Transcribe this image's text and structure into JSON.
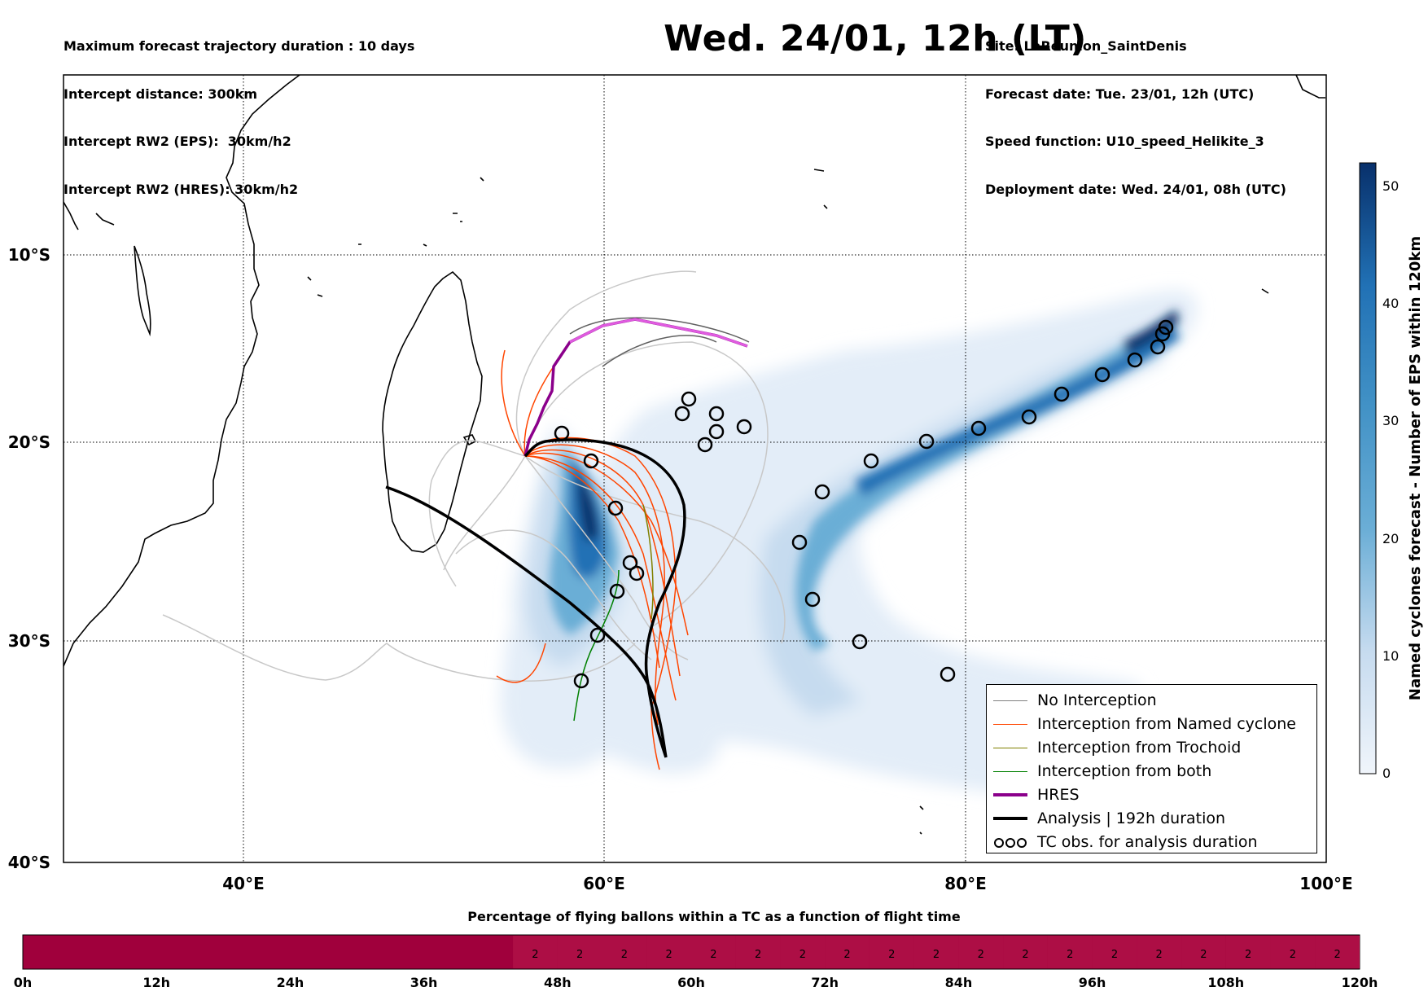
{
  "header_left": [
    "Maximum forecast trajectory duration : 10 days",
    "Intercept distance: 300km",
    "Intercept RW2 (EPS):  30km/h2",
    "Intercept RW2 (HRES): 30km/h2"
  ],
  "header_right": [
    "Site: LaReunion_SaintDenis",
    "Forecast date: Tue. 23/01, 12h (UTC)",
    "Speed function: U10_speed_Helikite_3",
    "Deployment date: Wed. 24/01, 08h (UTC)"
  ],
  "title": "Wed. 24/01, 12h (LT)",
  "map": {
    "lon_labels": [
      "40°E",
      "60°E",
      "80°E",
      "100°E"
    ],
    "lat_labels": [
      "10°S",
      "20°S",
      "30°S",
      "40°S"
    ]
  },
  "colorbar": {
    "label": "Named cyclones forecast - Number of EPS within 120km",
    "ticks": [
      "0",
      "10",
      "20",
      "30",
      "40",
      "50"
    ],
    "colors": [
      "#e3edf8",
      "#c6dbef",
      "#9ecae1",
      "#6baed6",
      "#4292c6",
      "#2171b5",
      "#08519c",
      "#08306b"
    ]
  },
  "legend": [
    {
      "label": "No Interception",
      "color": "#808080",
      "width": 1.5
    },
    {
      "label": "Interception from Named cyclone",
      "color": "#ff4500",
      "width": 1.5
    },
    {
      "label": "Interception from Trochoid",
      "color": "#808000",
      "width": 1.5
    },
    {
      "label": "Interception from both",
      "color": "#008000",
      "width": 1.5
    },
    {
      "label": "HRES",
      "color": "#8b008b",
      "width": 4
    },
    {
      "label": "Analysis | 192h duration",
      "color": "#000000",
      "width": 4
    },
    {
      "label": "TC obs. for analysis duration",
      "color": "#000000",
      "width": 0
    }
  ],
  "strip": {
    "title": "Percentage of flying ballons within a TC as a function of flight time",
    "labels": [
      "0h",
      "12h",
      "24h",
      "36h",
      "48h",
      "60h",
      "72h",
      "84h",
      "96h",
      "108h",
      "120h"
    ],
    "cell_value": "2",
    "colors": {
      "main": "#a0003c",
      "light": "#ad0e45"
    }
  }
}
